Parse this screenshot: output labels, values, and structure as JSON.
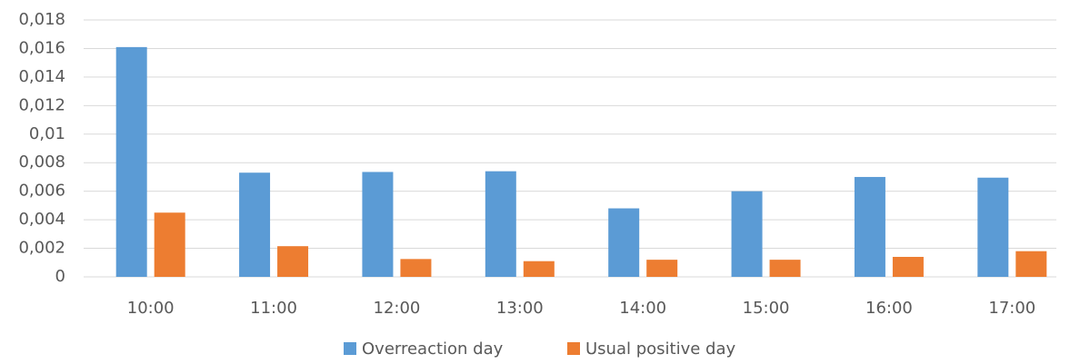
{
  "chart_data": {
    "type": "bar",
    "categories": [
      "10:00",
      "11:00",
      "12:00",
      "13:00",
      "14:00",
      "15:00",
      "16:00",
      "17:00"
    ],
    "series": [
      {
        "name": "Overreaction day",
        "color": "#5b9bd5",
        "values": [
          0.0161,
          0.0073,
          0.00735,
          0.0074,
          0.0048,
          0.006,
          0.007,
          0.00695
        ]
      },
      {
        "name": "Usual positive day",
        "color": "#ed7d31",
        "values": [
          0.0045,
          0.00215,
          0.00125,
          0.0011,
          0.0012,
          0.0012,
          0.0014,
          0.0018
        ]
      }
    ],
    "ylim": [
      0,
      0.018
    ],
    "yticks": [
      0,
      {
        "value": 0.002,
        "label": "0,002"
      },
      {
        "value": 0.004,
        "label": "0,004"
      },
      {
        "value": 0.006,
        "label": "0,006"
      },
      {
        "value": 0.008,
        "label": "0,008"
      },
      {
        "value": 0.01,
        "label": "0,01"
      },
      {
        "value": 0.012,
        "label": "0,012"
      },
      {
        "value": 0.014,
        "label": "0,014"
      },
      {
        "value": 0.016,
        "label": "0,016"
      },
      {
        "value": 0.018,
        "label": "0,018"
      }
    ],
    "grid": true,
    "legend": "bottom"
  }
}
